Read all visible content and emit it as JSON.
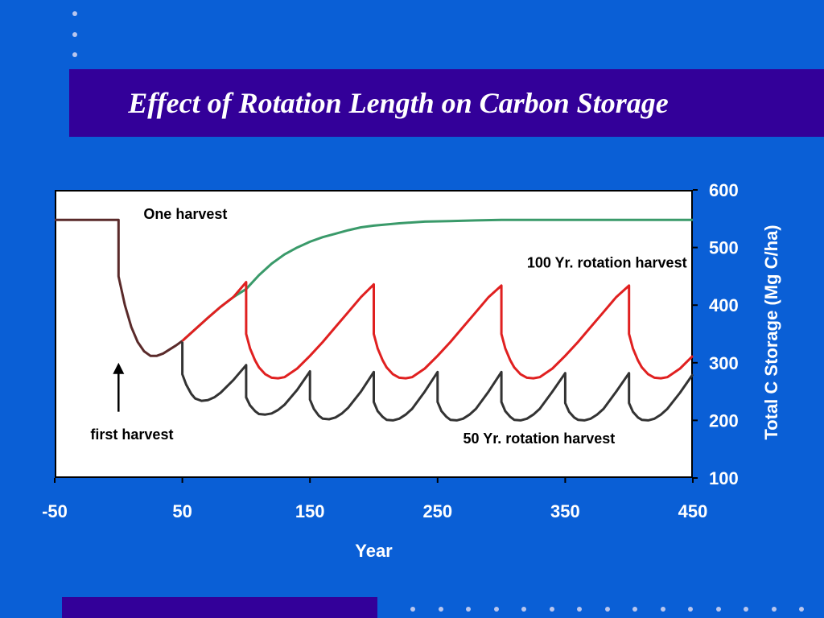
{
  "slide": {
    "title": "Effect of Rotation Length on Carbon Storage"
  },
  "colors": {
    "background": "#0a5fd6",
    "band": "#330099",
    "one_harvest": "#3a9a6a",
    "rotation_100": "#e02020",
    "rotation_50": "#333333",
    "pre_harvest": "#5a2a2a"
  },
  "chart_data": {
    "type": "line",
    "xlabel": "Year",
    "ylabel": "Total C Storage (Mg C/ha)",
    "xlim": [
      -50,
      450
    ],
    "ylim": [
      100,
      600
    ],
    "x_ticks": [
      "-50",
      "50",
      "150",
      "250",
      "350",
      "450"
    ],
    "y_ticks": [
      "100",
      "200",
      "300",
      "400",
      "500",
      "600"
    ],
    "y_axis_side": "right",
    "grid": false,
    "annotations": [
      {
        "text": "One harvest",
        "x": 70,
        "y": 550
      },
      {
        "text": "100 Yr. rotation harvest",
        "x": 320,
        "y": 465
      },
      {
        "text": "50 Yr. rotation harvest",
        "x": 270,
        "y": 160
      },
      {
        "text": "first harvest",
        "x": -22,
        "y": 167
      }
    ],
    "arrow": {
      "from": [
        0,
        215
      ],
      "to": [
        0,
        300
      ]
    },
    "series": [
      {
        "key": "pre_harvest",
        "x": [
          -50,
          0,
          0,
          5,
          10,
          15,
          20,
          25,
          30,
          35,
          40,
          45,
          50
        ],
        "y": [
          548,
          548,
          450,
          400,
          362,
          336,
          320,
          312,
          312,
          316,
          323,
          330,
          338
        ]
      },
      {
        "key": "one_harvest",
        "x": [
          50,
          60,
          70,
          80,
          90,
          100,
          110,
          120,
          130,
          140,
          150,
          160,
          170,
          180,
          190,
          200,
          220,
          240,
          260,
          280,
          300,
          350,
          400,
          450
        ],
        "y": [
          338,
          358,
          378,
          397,
          414,
          428,
          452,
          472,
          488,
          500,
          510,
          518,
          524,
          530,
          535,
          538,
          542,
          545,
          546,
          547,
          548,
          548,
          548,
          548
        ]
      },
      {
        "key": "rotation_100",
        "x": [
          50,
          60,
          70,
          80,
          90,
          100,
          100,
          103,
          107,
          110,
          115,
          120,
          125,
          130,
          140,
          150,
          160,
          170,
          180,
          190,
          200,
          200,
          203,
          207,
          210,
          215,
          220,
          225,
          230,
          240,
          250,
          260,
          270,
          280,
          290,
          300,
          300,
          303,
          307,
          310,
          315,
          320,
          325,
          330,
          340,
          350,
          360,
          370,
          380,
          390,
          400,
          400,
          403,
          407,
          410,
          415,
          420,
          425,
          430,
          440,
          450
        ],
        "y": [
          338,
          358,
          378,
          397,
          414,
          440,
          350,
          325,
          304,
          292,
          280,
          274,
          273,
          275,
          290,
          312,
          336,
          362,
          388,
          414,
          436,
          350,
          325,
          304,
          292,
          280,
          274,
          273,
          275,
          290,
          312,
          336,
          362,
          388,
          414,
          434,
          350,
          325,
          304,
          292,
          280,
          274,
          273,
          275,
          290,
          312,
          336,
          362,
          388,
          414,
          434,
          350,
          325,
          304,
          292,
          280,
          274,
          273,
          275,
          290,
          312
        ]
      },
      {
        "key": "rotation_50",
        "x": [
          50,
          50,
          53,
          57,
          60,
          65,
          70,
          75,
          80,
          90,
          100,
          100,
          103,
          107,
          110,
          115,
          120,
          125,
          130,
          140,
          150,
          150,
          153,
          157,
          160,
          165,
          170,
          175,
          180,
          190,
          200,
          200,
          203,
          207,
          210,
          215,
          220,
          225,
          230,
          240,
          250,
          250,
          253,
          257,
          260,
          265,
          270,
          275,
          280,
          290,
          300,
          300,
          303,
          307,
          310,
          315,
          320,
          325,
          330,
          340,
          350,
          350,
          353,
          357,
          360,
          365,
          370,
          375,
          380,
          390,
          400,
          400,
          403,
          407,
          410,
          415,
          420,
          425,
          430,
          440,
          450
        ],
        "y": [
          336,
          280,
          262,
          246,
          238,
          234,
          235,
          240,
          248,
          270,
          296,
          240,
          226,
          216,
          211,
          210,
          212,
          218,
          227,
          253,
          285,
          236,
          220,
          208,
          203,
          202,
          205,
          212,
          222,
          250,
          284,
          232,
          216,
          206,
          201,
          200,
          203,
          210,
          220,
          250,
          284,
          232,
          216,
          206,
          201,
          200,
          203,
          210,
          220,
          250,
          284,
          232,
          216,
          206,
          201,
          200,
          203,
          210,
          220,
          250,
          282,
          230,
          215,
          205,
          201,
          200,
          203,
          210,
          220,
          250,
          282,
          230,
          215,
          205,
          201,
          200,
          203,
          210,
          220,
          248,
          280
        ]
      }
    ]
  }
}
